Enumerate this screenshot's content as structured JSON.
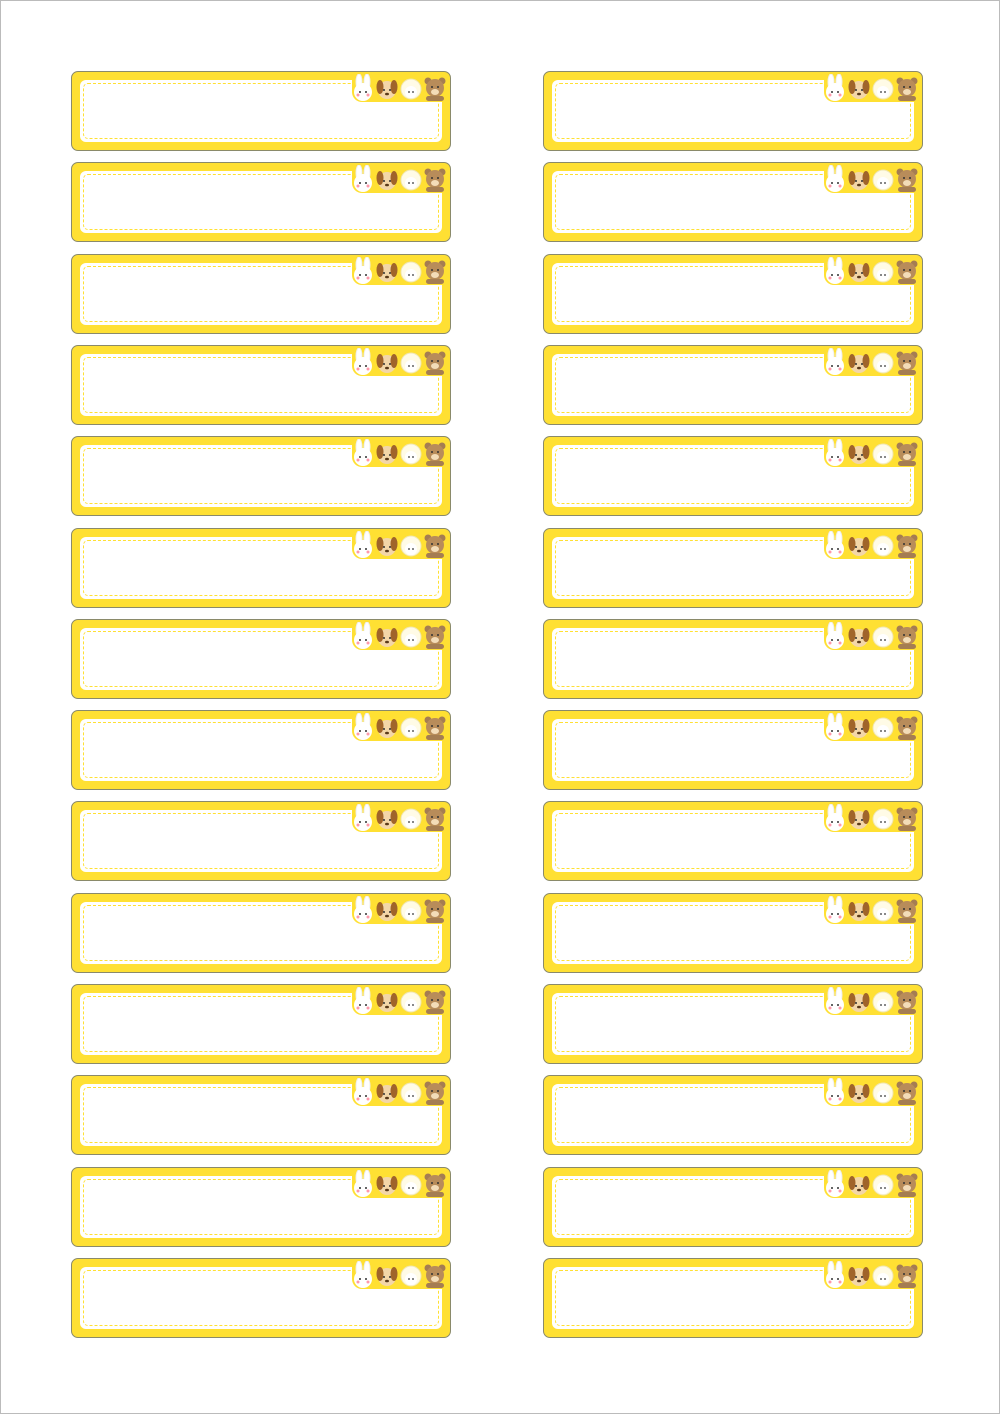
{
  "colors": {
    "label_fill": "#FFE033",
    "dash": "#FFE033",
    "inner": "#FFFFFF",
    "border": "#8A8A6A"
  },
  "animals": [
    "rabbit",
    "dog",
    "sheep",
    "bear"
  ]
}
